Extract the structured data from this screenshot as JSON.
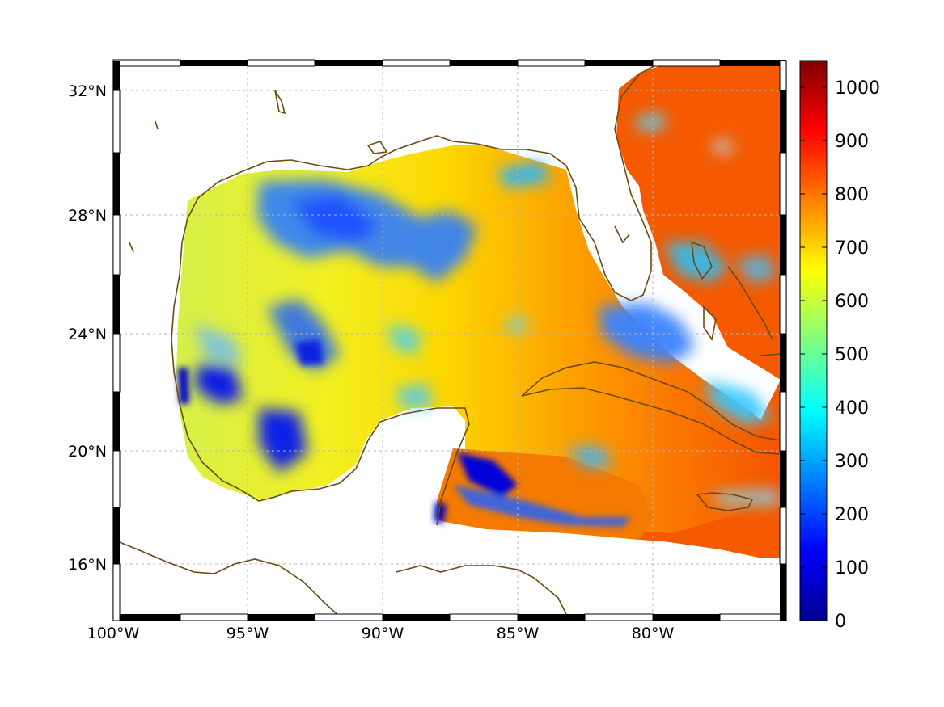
{
  "map": {
    "lon_ticks": [
      "100°W",
      "95°W",
      "90°W",
      "85°W",
      "80°W"
    ],
    "lat_ticks": [
      "32°N",
      "28°N",
      "24°N",
      "20°N",
      "16°N"
    ],
    "extent": {
      "lon_min": -100,
      "lon_max": -75,
      "lat_min": 14.2,
      "lat_max": 33
    },
    "grid": "dashed",
    "coastline_color": "#6b4a10"
  },
  "colorbar": {
    "tick_labels": [
      "0",
      "100",
      "200",
      "300",
      "400",
      "500",
      "600",
      "700",
      "800",
      "900",
      "1000"
    ],
    "range": [
      0,
      1050
    ],
    "colormap": "jet"
  }
}
